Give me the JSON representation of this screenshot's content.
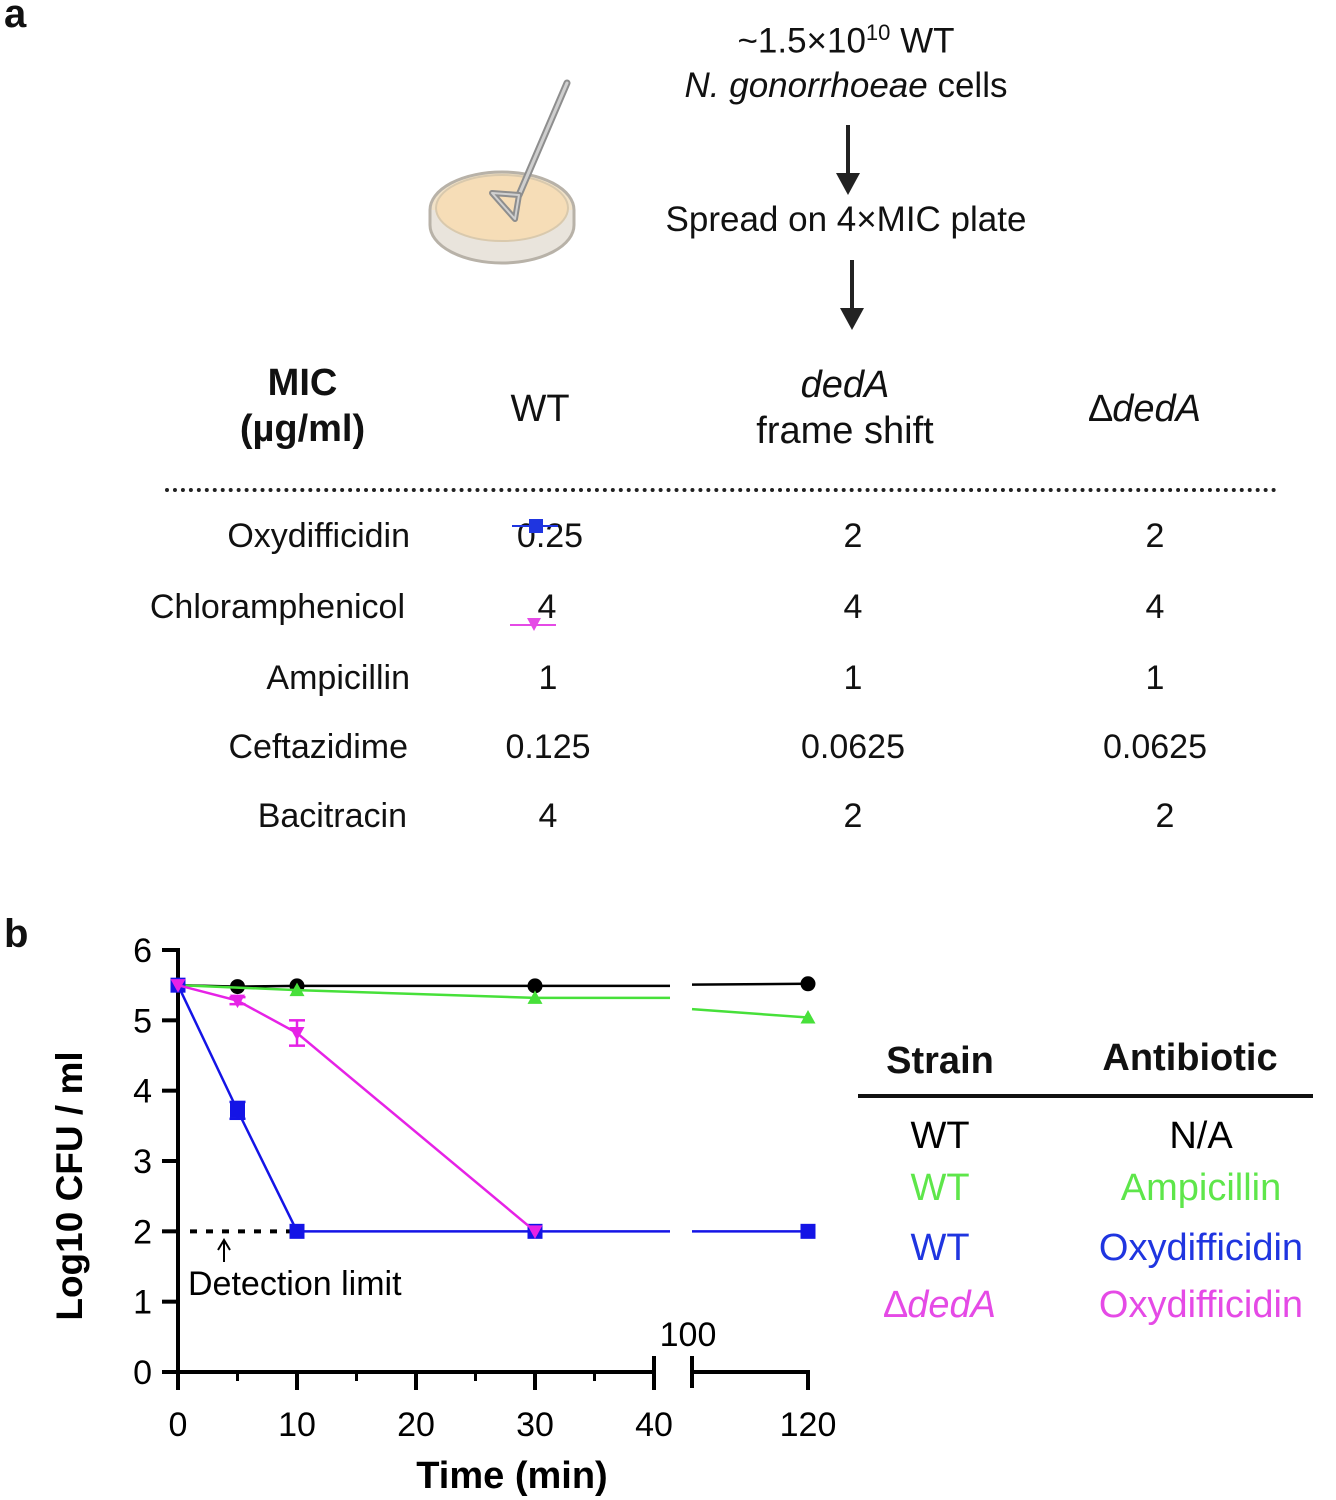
{
  "panel_a": {
    "label": "a",
    "flow": {
      "cells_line1_prefix": "~1.5×10",
      "cells_line1_exp": "10",
      "cells_line1_suffix": " WT",
      "cells_line2_species": "N. gonorrhoeae",
      "cells_line2_suffix": " cells",
      "spread_text": "Spread on 4×MIC plate"
    },
    "table": {
      "header_mic_line1": "MIC",
      "header_mic_line2": "(µg/ml)",
      "header_wt": "WT",
      "header_frameshift_line1": "dedA",
      "header_frameshift_line2": "frame shift",
      "header_delta_symbol": "∆",
      "header_delta_gene": "dedA",
      "rows": [
        {
          "antibiotic": "Oxydifficidin",
          "wt": "0.25",
          "frameshift": "2",
          "delta": "2"
        },
        {
          "antibiotic": "Chloramphenicol",
          "wt": "4",
          "frameshift": "4",
          "delta": "4"
        },
        {
          "antibiotic": "Ampicillin",
          "wt": "1",
          "frameshift": "1",
          "delta": "1"
        },
        {
          "antibiotic": "Ceftazidime",
          "wt": "0.125",
          "frameshift": "0.0625",
          "delta": "0.0625"
        },
        {
          "antibiotic": "Bacitracin",
          "wt": "4",
          "frameshift": "2",
          "delta": "2"
        }
      ]
    }
  },
  "panel_b": {
    "label": "b",
    "legend": {
      "header_strain": "Strain",
      "header_antibiotic": "Antibiotic",
      "entries": [
        {
          "strain": "WT",
          "antibiotic": "N/A",
          "color": "#000000"
        },
        {
          "strain": "WT",
          "antibiotic": "Ampicillin",
          "color": "#5ee64a"
        },
        {
          "strain": "WT",
          "antibiotic": "Oxydifficidin",
          "color": "#1f35e0"
        },
        {
          "strain": "∆dedA",
          "antibiotic": "Oxydifficidin",
          "color": "#e54ae6"
        }
      ]
    },
    "chart_data": {
      "type": "line",
      "xlabel": "Time (min)",
      "ylabel": "Log10 CFU / ml",
      "ylim": [
        0,
        6
      ],
      "yticks": [
        "0",
        "1",
        "2",
        "3",
        "4",
        "5",
        "6"
      ],
      "xticks": [
        "0",
        "10",
        "20",
        "30",
        "40",
        "120"
      ],
      "x_break_label": "100",
      "x_break": [
        40,
        100
      ],
      "annotation": "Detection limit",
      "detection_limit": 2,
      "series": [
        {
          "marker": "circle",
          "color": "#000000",
          "x": [
            0,
            5,
            10,
            30,
            120
          ],
          "y": [
            5.5,
            5.48,
            5.49,
            5.49,
            5.52
          ],
          "err": [
            0,
            0,
            0,
            0,
            0
          ]
        },
        {
          "marker": "triangle-up",
          "color": "#47e03a",
          "x": [
            0,
            10,
            30,
            120
          ],
          "y": [
            5.5,
            5.43,
            5.32,
            5.04
          ],
          "err": [
            0,
            0,
            0,
            0
          ]
        },
        {
          "marker": "square",
          "color": "#1414e6",
          "x": [
            0,
            5,
            10,
            30,
            120
          ],
          "y": [
            5.5,
            3.72,
            2.0,
            2.0,
            2.0
          ],
          "err": [
            0,
            0.12,
            0,
            0,
            0
          ]
        },
        {
          "marker": "triangle-down",
          "color": "#e622e6",
          "x": [
            0,
            5,
            10,
            30
          ],
          "y": [
            5.5,
            5.28,
            4.82,
            2.0
          ],
          "err": [
            0,
            0.05,
            0.18,
            0
          ]
        }
      ]
    }
  }
}
